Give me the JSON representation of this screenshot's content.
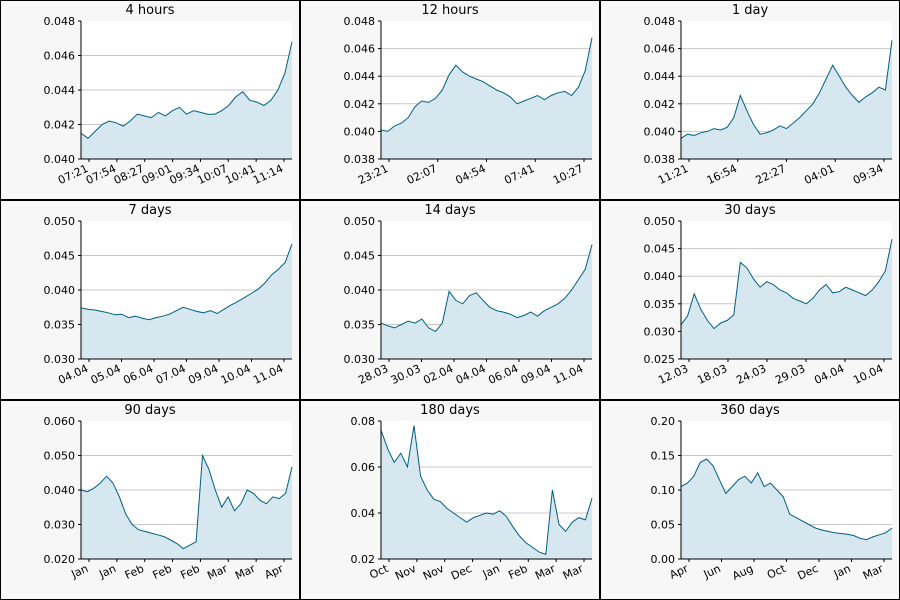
{
  "colors": {
    "line": "#005f7f",
    "fill": "#d6e7ef",
    "grid": "#c8c8c8",
    "background": "#ffffff",
    "panel": "#f7f7f7"
  },
  "chart_data": [
    {
      "type": "area",
      "title": "4 hours",
      "ylim": [
        0.04,
        0.048
      ],
      "yticks": [
        "0.040",
        "0.042",
        "0.044",
        "0.046",
        "0.048"
      ],
      "xticks": [
        "07:21",
        "07:54",
        "08:27",
        "09:01",
        "09:34",
        "10:07",
        "10:41",
        "11:14"
      ],
      "grid": true,
      "series": [
        {
          "values": [
            0.0415,
            0.0412,
            0.0416,
            0.042,
            0.0422,
            0.0421,
            0.0419,
            0.0422,
            0.0426,
            0.0425,
            0.0424,
            0.0427,
            0.0425,
            0.0428,
            0.043,
            0.0426,
            0.0428,
            0.0427,
            0.0426,
            0.0426,
            0.0428,
            0.0431,
            0.0436,
            0.0439,
            0.0434,
            0.0433,
            0.0431,
            0.0434,
            0.044,
            0.045,
            0.0468
          ]
        }
      ]
    },
    {
      "type": "area",
      "title": "12 hours",
      "ylim": [
        0.038,
        0.048
      ],
      "yticks": [
        "0.038",
        "0.040",
        "0.042",
        "0.044",
        "0.046",
        "0.048"
      ],
      "xticks": [
        "23:21",
        "02:07",
        "04:54",
        "07:41",
        "10:27"
      ],
      "grid": true,
      "series": [
        {
          "values": [
            0.0401,
            0.04,
            0.0404,
            0.0406,
            0.041,
            0.0418,
            0.0422,
            0.0421,
            0.0424,
            0.043,
            0.0441,
            0.0448,
            0.0443,
            0.044,
            0.0438,
            0.0436,
            0.0433,
            0.043,
            0.0428,
            0.0425,
            0.042,
            0.0422,
            0.0424,
            0.0426,
            0.0423,
            0.0426,
            0.0428,
            0.0429,
            0.0426,
            0.0432,
            0.0444,
            0.0468
          ]
        }
      ]
    },
    {
      "type": "area",
      "title": "1 day",
      "ylim": [
        0.038,
        0.048
      ],
      "yticks": [
        "0.038",
        "0.040",
        "0.042",
        "0.044",
        "0.046",
        "0.048"
      ],
      "xticks": [
        "11:21",
        "16:54",
        "22:27",
        "04:01",
        "09:34"
      ],
      "grid": true,
      "series": [
        {
          "values": [
            0.0395,
            0.0398,
            0.0397,
            0.0399,
            0.04,
            0.0402,
            0.0401,
            0.0403,
            0.041,
            0.0426,
            0.0415,
            0.0405,
            0.0398,
            0.0399,
            0.0401,
            0.0404,
            0.0402,
            0.0406,
            0.041,
            0.0415,
            0.042,
            0.0428,
            0.0438,
            0.0448,
            0.044,
            0.0432,
            0.0426,
            0.0421,
            0.0425,
            0.0428,
            0.0432,
            0.043,
            0.0466
          ]
        }
      ]
    },
    {
      "type": "area",
      "title": "7 days",
      "ylim": [
        0.03,
        0.05
      ],
      "yticks": [
        "0.030",
        "0.035",
        "0.040",
        "0.045",
        "0.050"
      ],
      "xticks": [
        "04.04",
        "05.04",
        "06.04",
        "07.04",
        "09.04",
        "10.04",
        "11.04"
      ],
      "grid": true,
      "series": [
        {
          "values": [
            0.0374,
            0.0372,
            0.0371,
            0.0369,
            0.0367,
            0.0364,
            0.0365,
            0.036,
            0.0362,
            0.0359,
            0.0357,
            0.036,
            0.0362,
            0.0365,
            0.037,
            0.0375,
            0.0372,
            0.0369,
            0.0367,
            0.037,
            0.0366,
            0.0372,
            0.0378,
            0.0383,
            0.0389,
            0.0395,
            0.0401,
            0.041,
            0.0422,
            0.043,
            0.044,
            0.0467
          ]
        }
      ]
    },
    {
      "type": "area",
      "title": "14 days",
      "ylim": [
        0.03,
        0.05
      ],
      "yticks": [
        "0.030",
        "0.035",
        "0.040",
        "0.045",
        "0.050"
      ],
      "xticks": [
        "28.03",
        "30.03",
        "02.04",
        "04.04",
        "06.04",
        "09.04",
        "11.04"
      ],
      "grid": true,
      "series": [
        {
          "values": [
            0.0352,
            0.0348,
            0.0345,
            0.035,
            0.0355,
            0.0352,
            0.0358,
            0.0345,
            0.034,
            0.0352,
            0.0398,
            0.0385,
            0.038,
            0.0392,
            0.0396,
            0.0385,
            0.0375,
            0.037,
            0.0368,
            0.0365,
            0.036,
            0.0363,
            0.0368,
            0.0362,
            0.037,
            0.0375,
            0.038,
            0.0388,
            0.04,
            0.0415,
            0.043,
            0.0466
          ]
        }
      ]
    },
    {
      "type": "area",
      "title": "30 days",
      "ylim": [
        0.025,
        0.05
      ],
      "yticks": [
        "0.025",
        "0.030",
        "0.035",
        "0.040",
        "0.045",
        "0.050"
      ],
      "xticks": [
        "12.03",
        "18.03",
        "24.03",
        "29.03",
        "04.04",
        "10.04"
      ],
      "grid": true,
      "series": [
        {
          "values": [
            0.0312,
            0.0328,
            0.0368,
            0.034,
            0.032,
            0.0305,
            0.0315,
            0.032,
            0.033,
            0.0425,
            0.0415,
            0.0395,
            0.038,
            0.039,
            0.0385,
            0.0375,
            0.037,
            0.036,
            0.0355,
            0.035,
            0.036,
            0.0375,
            0.0385,
            0.037,
            0.0372,
            0.038,
            0.0375,
            0.037,
            0.0365,
            0.0375,
            0.039,
            0.041,
            0.0467
          ]
        }
      ]
    },
    {
      "type": "area",
      "title": "90 days",
      "ylim": [
        0.02,
        0.06
      ],
      "yticks": [
        "0.020",
        "0.030",
        "0.040",
        "0.050",
        "0.060"
      ],
      "xticks": [
        "Jan",
        "Jan",
        "Feb",
        "Feb",
        "Feb",
        "Mar",
        "Mar",
        "Apr"
      ],
      "grid": true,
      "series": [
        {
          "values": [
            0.04,
            0.0395,
            0.0405,
            0.042,
            0.044,
            0.042,
            0.038,
            0.033,
            0.03,
            0.0285,
            0.028,
            0.0275,
            0.027,
            0.0265,
            0.0255,
            0.0245,
            0.023,
            0.024,
            0.025,
            0.05,
            0.046,
            0.04,
            0.035,
            0.038,
            0.034,
            0.036,
            0.04,
            0.039,
            0.037,
            0.036,
            0.038,
            0.0375,
            0.039,
            0.0467
          ]
        }
      ]
    },
    {
      "type": "area",
      "title": "180 days",
      "ylim": [
        0.02,
        0.08
      ],
      "yticks": [
        "0.02",
        "0.04",
        "0.06",
        "0.08"
      ],
      "xticks": [
        "Oct",
        "Nov",
        "Nov",
        "Dec",
        "Jan",
        "Feb",
        "Mar",
        "Mar"
      ],
      "grid": true,
      "series": [
        {
          "values": [
            0.076,
            0.068,
            0.062,
            0.066,
            0.06,
            0.078,
            0.056,
            0.05,
            0.046,
            0.045,
            0.042,
            0.04,
            0.038,
            0.036,
            0.038,
            0.039,
            0.04,
            0.0395,
            0.041,
            0.0385,
            0.034,
            0.03,
            0.027,
            0.025,
            0.023,
            0.022,
            0.05,
            0.035,
            0.032,
            0.036,
            0.038,
            0.037,
            0.0465
          ]
        }
      ]
    },
    {
      "type": "area",
      "title": "360 days",
      "ylim": [
        0.0,
        0.2
      ],
      "yticks": [
        "0.00",
        "0.05",
        "0.10",
        "0.15",
        "0.20"
      ],
      "xticks": [
        "Apr",
        "Jun",
        "Aug",
        "Oct",
        "Dec",
        "Jan",
        "Mar"
      ],
      "grid": true,
      "series": [
        {
          "values": [
            0.105,
            0.11,
            0.12,
            0.14,
            0.145,
            0.135,
            0.115,
            0.095,
            0.105,
            0.115,
            0.12,
            0.11,
            0.125,
            0.105,
            0.11,
            0.1,
            0.09,
            0.065,
            0.06,
            0.055,
            0.05,
            0.045,
            0.042,
            0.04,
            0.038,
            0.037,
            0.036,
            0.034,
            0.03,
            0.028,
            0.032,
            0.035,
            0.038,
            0.045
          ]
        }
      ]
    }
  ]
}
